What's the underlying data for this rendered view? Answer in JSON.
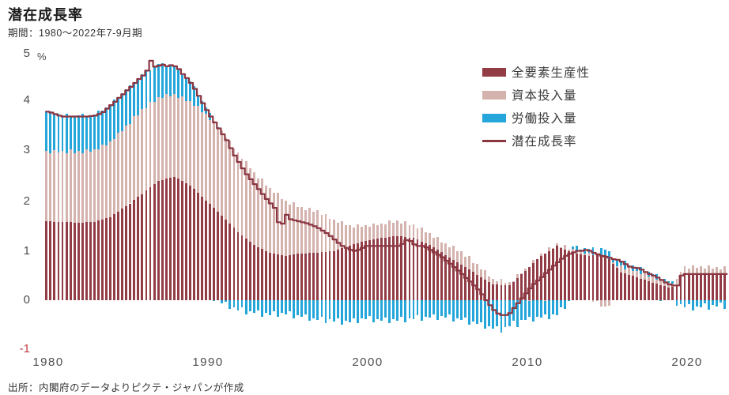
{
  "header": {
    "title": "潜在成長率",
    "subtitle": "期間：1980〜2022年7-9月期"
  },
  "axes": {
    "unit": "%",
    "y_ticks": [
      "5",
      "4",
      "3",
      "2",
      "1",
      "0",
      "-1"
    ],
    "x_ticks": [
      "1980",
      "1990",
      "2000",
      "2010",
      "2020"
    ]
  },
  "legend": {
    "items": [
      {
        "label": "全要素生産性",
        "type": "bar",
        "color": "#923c46"
      },
      {
        "label": "資本投入量",
        "type": "bar",
        "color": "#d4b2ae"
      },
      {
        "label": "労働投入量",
        "type": "bar",
        "color": "#24a6da"
      },
      {
        "label": "潜在成長率",
        "type": "line",
        "color": "#8a3540"
      }
    ]
  },
  "source": {
    "text": "出所：内閣府のデータよりピクテ・ジャパンが作成"
  },
  "colors": {
    "tfp": "#923c46",
    "capital": "#d4b2ae",
    "labor": "#24a6da",
    "line": "#8a3540",
    "negative_tick": "#c23a45",
    "text": "#1c1c1c",
    "muted_text": "#4d4d4d"
  },
  "chart_data": {
    "type": "bar",
    "subtype": "stacked-quarterly-bars-with-line",
    "title": "潜在成長率",
    "period_label": "1980Q1-2022Q3",
    "frequency": "quarterly",
    "unit": "%",
    "ylim": [
      -1,
      5
    ],
    "yticks": [
      5,
      4,
      3,
      2,
      1,
      0,
      -1
    ],
    "xticks": [
      1980,
      1990,
      2000,
      2010,
      2020
    ],
    "grid": false,
    "legend_position": "upper-right",
    "series": [
      {
        "name": "全要素生産性",
        "key": "tfp",
        "type": "bar",
        "color": "#923c46",
        "values": [
          1.6,
          1.6,
          1.59,
          1.59,
          1.58,
          1.58,
          1.58,
          1.57,
          1.57,
          1.57,
          1.58,
          1.58,
          1.58,
          1.61,
          1.63,
          1.66,
          1.68,
          1.74,
          1.79,
          1.85,
          1.9,
          1.96,
          2.03,
          2.09,
          2.15,
          2.22,
          2.29,
          2.35,
          2.42,
          2.44,
          2.46,
          2.48,
          2.5,
          2.46,
          2.41,
          2.37,
          2.32,
          2.25,
          2.17,
          2.1,
          2.02,
          1.95,
          1.87,
          1.8,
          1.72,
          1.64,
          1.55,
          1.47,
          1.38,
          1.32,
          1.25,
          1.19,
          1.12,
          1.08,
          1.04,
          1.0,
          0.96,
          0.95,
          0.93,
          0.92,
          0.9,
          0.91,
          0.93,
          0.94,
          0.95,
          0.95,
          0.96,
          0.96,
          0.96,
          0.97,
          0.98,
          0.99,
          1.0,
          1.03,
          1.05,
          1.08,
          1.1,
          1.13,
          1.15,
          1.18,
          1.2,
          1.22,
          1.23,
          1.25,
          1.26,
          1.27,
          1.28,
          1.29,
          1.3,
          1.29,
          1.28,
          1.27,
          1.26,
          1.23,
          1.19,
          1.16,
          1.12,
          1.07,
          1.02,
          0.97,
          0.92,
          0.87,
          0.82,
          0.77,
          0.72,
          0.67,
          0.62,
          0.57,
          0.52,
          0.47,
          0.42,
          0.37,
          0.32,
          0.32,
          0.31,
          0.31,
          0.3,
          0.38,
          0.45,
          0.53,
          0.6,
          0.68,
          0.75,
          0.83,
          0.9,
          0.95,
          1.0,
          1.05,
          1.1,
          1.07,
          1.03,
          1.0,
          0.96,
          0.95,
          0.93,
          0.92,
          0.9,
          0.91,
          0.91,
          0.92,
          0.92,
          0.83,
          0.74,
          0.65,
          0.56,
          0.54,
          0.51,
          0.49,
          0.46,
          0.44,
          0.41,
          0.39,
          0.36,
          0.34,
          0.31,
          0.29,
          0.26,
          0.28,
          0.3,
          0.48,
          0.55,
          0.55,
          0.55,
          0.55,
          0.55,
          0.55,
          0.55,
          0.55,
          0.55,
          0.55,
          0.55
        ]
      },
      {
        "name": "資本投入量",
        "key": "capital",
        "type": "bar",
        "color": "#d4b2ae",
        "values": [
          1.42,
          1.38,
          1.45,
          1.4,
          1.44,
          1.39,
          1.47,
          1.41,
          1.45,
          1.41,
          1.48,
          1.43,
          1.47,
          1.44,
          1.53,
          1.48,
          1.54,
          1.52,
          1.61,
          1.58,
          1.64,
          1.61,
          1.7,
          1.66,
          1.72,
          1.67,
          1.73,
          1.67,
          1.7,
          1.65,
          1.71,
          1.65,
          1.68,
          1.64,
          1.72,
          1.67,
          1.72,
          1.68,
          1.76,
          1.71,
          1.76,
          1.7,
          1.76,
          1.69,
          1.72,
          1.65,
          1.69,
          1.61,
          1.62,
          1.54,
          1.57,
          1.48,
          1.48,
          1.39,
          1.42,
          1.32,
          1.32,
          1.22,
          1.24,
          1.13,
          1.12,
          1.03,
          1.05,
          0.95,
          0.94,
          0.87,
          0.92,
          0.84,
          0.86,
          0.76,
          0.77,
          0.66,
          0.64,
          0.54,
          0.55,
          0.44,
          0.42,
          0.35,
          0.39,
          0.31,
          0.32,
          0.27,
          0.33,
          0.27,
          0.3,
          0.26,
          0.33,
          0.28,
          0.32,
          0.26,
          0.32,
          0.25,
          0.28,
          0.22,
          0.28,
          0.21,
          0.24,
          0.19,
          0.26,
          0.2,
          0.24,
          0.2,
          0.28,
          0.22,
          0.27,
          0.21,
          0.27,
          0.19,
          0.22,
          0.15,
          0.19,
          0.11,
          0.12,
          0.06,
          0.12,
          0.04,
          0.07,
          0.01,
          0.08,
          0.01,
          0.04,
          -0.01,
          0.06,
          0.0,
          0.04,
          -0.01,
          0.07,
          0.01,
          0.05,
          0.01,
          0.09,
          0.03,
          0.08,
          0.03,
          0.09,
          0.03,
          0.06,
          -0.03,
          -0.01,
          -0.12,
          -0.12,
          -0.11,
          0.03,
          0.04,
          0.14,
          0.09,
          0.16,
          0.1,
          0.14,
          0.09,
          0.15,
          0.09,
          0.12,
          0.07,
          0.13,
          0.07,
          0.1,
          0.06,
          0.14,
          0.09,
          0.14,
          0.09,
          0.16,
          0.1,
          0.14,
          0.09,
          0.15,
          0.09,
          0.12,
          0.07,
          0.14
        ]
      },
      {
        "name": "労働投入量",
        "key": "labor",
        "type": "bar",
        "color": "#24a6da",
        "values": [
          0.8,
          0.85,
          0.72,
          0.78,
          0.73,
          0.8,
          0.68,
          0.75,
          0.72,
          0.79,
          0.67,
          0.74,
          0.71,
          0.79,
          0.68,
          0.76,
          0.74,
          0.81,
          0.69,
          0.76,
          0.73,
          0.79,
          0.67,
          0.74,
          0.7,
          0.76,
          0.63,
          0.7,
          0.66,
          0.71,
          0.56,
          0.62,
          0.56,
          0.59,
          0.43,
          0.47,
          0.4,
          0.4,
          0.21,
          0.22,
          0.12,
          0.15,
          -0.02,
          0.01,
          -0.06,
          -0.03,
          -0.18,
          -0.14,
          -0.2,
          -0.15,
          -0.28,
          -0.22,
          -0.26,
          -0.2,
          -0.33,
          -0.26,
          -0.3,
          -0.23,
          -0.34,
          -0.26,
          -0.28,
          -0.23,
          -0.36,
          -0.3,
          -0.34,
          -0.29,
          -0.42,
          -0.36,
          -0.4,
          -0.34,
          -0.47,
          -0.39,
          -0.43,
          -0.37,
          -0.49,
          -0.42,
          -0.45,
          -0.36,
          -0.47,
          -0.37,
          -0.38,
          -0.32,
          -0.45,
          -0.38,
          -0.42,
          -0.35,
          -0.47,
          -0.39,
          -0.42,
          -0.34,
          -0.45,
          -0.36,
          -0.38,
          -0.3,
          -0.42,
          -0.33,
          -0.35,
          -0.28,
          -0.4,
          -0.32,
          -0.35,
          -0.29,
          -0.43,
          -0.36,
          -0.4,
          -0.35,
          -0.49,
          -0.43,
          -0.48,
          -0.44,
          -0.58,
          -0.53,
          -0.58,
          -0.52,
          -0.65,
          -0.55,
          -0.52,
          -0.42,
          -0.55,
          -0.4,
          -0.4,
          -0.32,
          -0.43,
          -0.33,
          -0.35,
          -0.27,
          -0.38,
          -0.28,
          -0.3,
          -0.14,
          -0.18,
          -0.01,
          0.05,
          0.13,
          0.01,
          0.1,
          0.08,
          0.16,
          0.04,
          0.13,
          0.1,
          0.17,
          0.05,
          0.13,
          0.1,
          0.17,
          0.04,
          0.12,
          0.08,
          0.14,
          0.02,
          0.09,
          0.05,
          0.12,
          -0.01,
          0.07,
          0.03,
          0.05,
          -0.11,
          -0.08,
          -0.15,
          -0.08,
          -0.2,
          -0.12,
          -0.15,
          -0.07,
          -0.19,
          -0.1,
          -0.12,
          -0.05,
          -0.17
        ]
      },
      {
        "name": "潜在成長率",
        "key": "potential",
        "type": "line",
        "color": "#8a3540",
        "values": [
          3.82,
          3.8,
          3.77,
          3.74,
          3.72,
          3.72,
          3.72,
          3.72,
          3.72,
          3.72,
          3.72,
          3.73,
          3.74,
          3.77,
          3.81,
          3.88,
          3.95,
          4.02,
          4.1,
          4.17,
          4.25,
          4.32,
          4.4,
          4.48,
          4.55,
          4.65,
          4.85,
          4.73,
          4.75,
          4.77,
          4.74,
          4.76,
          4.74,
          4.68,
          4.58,
          4.5,
          4.4,
          4.28,
          4.14,
          3.99,
          3.85,
          3.72,
          3.6,
          3.48,
          3.36,
          3.24,
          3.08,
          2.93,
          2.8,
          2.67,
          2.55,
          2.45,
          2.35,
          2.25,
          2.15,
          2.05,
          1.96,
          1.87,
          1.58,
          1.55,
          1.73,
          1.64,
          1.62,
          1.6,
          1.58,
          1.56,
          1.53,
          1.5,
          1.46,
          1.41,
          1.36,
          1.3,
          1.23,
          1.16,
          1.1,
          1.06,
          1.02,
          1.0,
          1.02,
          1.06,
          1.1,
          1.1,
          1.1,
          1.1,
          1.1,
          1.1,
          1.1,
          1.1,
          1.1,
          1.14,
          1.22,
          1.2,
          1.13,
          1.1,
          1.1,
          1.07,
          1.02,
          0.97,
          0.92,
          0.87,
          0.8,
          0.74,
          0.67,
          0.6,
          0.53,
          0.45,
          0.38,
          0.3,
          0.22,
          0.12,
          0.0,
          -0.1,
          -0.2,
          -0.27,
          -0.3,
          -0.3,
          -0.26,
          -0.16,
          -0.06,
          0.04,
          0.14,
          0.24,
          0.33,
          0.4,
          0.47,
          0.55,
          0.62,
          0.7,
          0.77,
          0.84,
          0.9,
          0.94,
          0.97,
          1.0,
          1.0,
          1.02,
          1.0,
          0.96,
          0.93,
          0.9,
          0.88,
          0.86,
          0.83,
          0.82,
          0.78,
          0.73,
          0.68,
          0.66,
          0.65,
          0.62,
          0.57,
          0.53,
          0.5,
          0.46,
          0.41,
          0.36,
          0.32,
          0.3,
          0.3,
          0.5,
          0.53,
          0.53,
          0.53,
          0.53,
          0.53,
          0.53,
          0.53,
          0.53,
          0.53,
          0.53,
          0.53
        ]
      }
    ]
  }
}
